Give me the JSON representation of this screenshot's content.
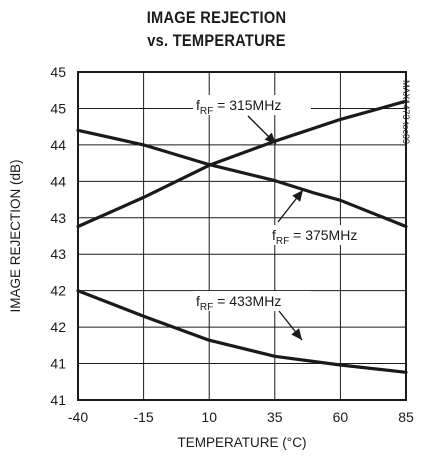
{
  "chart_data": {
    "type": "line",
    "title_line1": "IMAGE REJECTION",
    "title_line2": "vs. TEMPERATURE",
    "xlabel": "TEMPERATURE (°C)",
    "ylabel": "IMAGE REJECTION (dB)",
    "x_ticks": [
      "-40",
      "-15",
      "10",
      "35",
      "60",
      "85"
    ],
    "y_ticks": [
      "41",
      "41",
      "42",
      "42",
      "43",
      "43",
      "44",
      "44",
      "45",
      "45"
    ],
    "xlim": [
      -40,
      85
    ],
    "ylim": [
      41,
      45.5
    ],
    "grid": true,
    "figure_code": "MAX1473 toc09",
    "series": [
      {
        "name": "fRF = 315MHz",
        "label_main": "f",
        "label_sub": "RF",
        "label_rest": " = 315MHz",
        "x": [
          -40,
          -15,
          10,
          35,
          60,
          85
        ],
        "values": [
          43.38,
          43.78,
          44.22,
          44.55,
          44.85,
          45.1
        ]
      },
      {
        "name": "fRF = 375MHz",
        "label_main": "f",
        "label_sub": "RF",
        "label_rest": " = 375MHz",
        "x": [
          -40,
          -15,
          10,
          35,
          50,
          60,
          85
        ],
        "values": [
          44.7,
          44.5,
          44.23,
          44.01,
          43.84,
          43.74,
          43.38
        ]
      },
      {
        "name": "fRF = 433MHz",
        "label_main": "f",
        "label_sub": "RF",
        "label_rest": " = 433MHz",
        "x": [
          -40,
          -15,
          10,
          35,
          60,
          85
        ],
        "values": [
          42.5,
          42.15,
          41.82,
          41.6,
          41.48,
          41.38
        ]
      }
    ]
  }
}
